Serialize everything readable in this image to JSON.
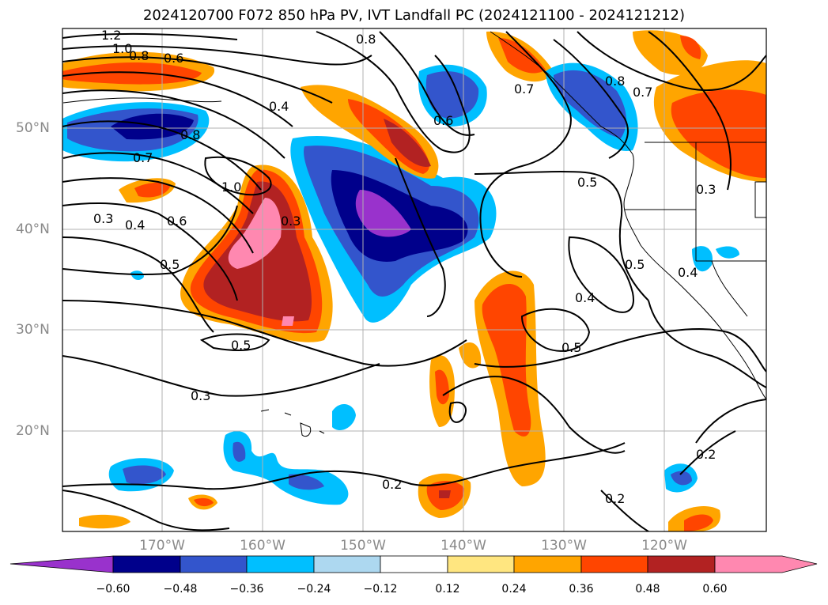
{
  "title": "2024120700 F072 850 hPa PV, IVT Landfall PC (2024121100 - 2024121212)",
  "map": {
    "lat_labels": [
      "50°N",
      "40°N",
      "30°N",
      "20°N"
    ],
    "lon_labels": [
      "170°W",
      "160°W",
      "150°W",
      "140°W",
      "130°W",
      "120°W"
    ],
    "contour_labels": [
      "1.2",
      "1.0",
      "0.8",
      "0.6",
      "0.8",
      "0.4",
      "0.8",
      "0.7",
      "1.0",
      "0.6",
      "0.4",
      "0.3",
      "0.5",
      "0.3",
      "0.6",
      "0.5",
      "0.3",
      "0.5",
      "0.4",
      "0.5",
      "0.3",
      "0.4",
      "0.8",
      "0.7",
      "0.2",
      "0.2",
      "0.2"
    ]
  },
  "colorbar": {
    "ticks": [
      "−0.60",
      "−0.48",
      "−0.36",
      "−0.24",
      "−0.12",
      "0.12",
      "0.24",
      "0.36",
      "0.48",
      "0.60"
    ],
    "colors": [
      "#9932cc",
      "#00008b",
      "#3355cc",
      "#00bfff",
      "#add8f0",
      "#ffffff",
      "#ffe680",
      "#ffa500",
      "#ff4500",
      "#b22222",
      "#ff88b0"
    ]
  }
}
